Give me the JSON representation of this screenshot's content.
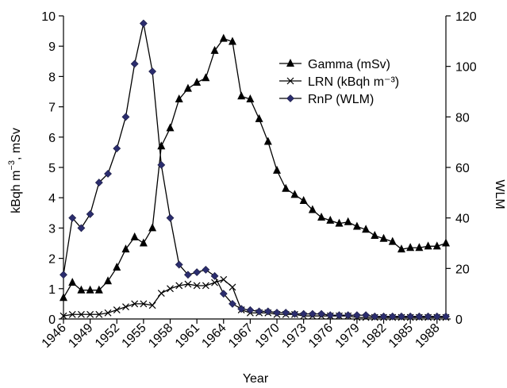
{
  "chart_data": {
    "type": "line",
    "xlabel": "Year",
    "ylabel_left_main": "kBqh m",
    "ylabel_left_sup": "−3",
    "ylabel_left_suffix": ", mSv",
    "ylabel_right": "WLM",
    "ylim_left": [
      0,
      10
    ],
    "ylim_right": [
      0,
      120
    ],
    "xlim": [
      1946,
      1989
    ],
    "x_ticks": [
      "1946",
      "1949",
      "1952",
      "1955",
      "1958",
      "1961",
      "1964",
      "1967",
      "1970",
      "1973",
      "1976",
      "1979",
      "1982",
      "1985",
      "1988"
    ],
    "y_ticks_left": [
      "0",
      "1",
      "2",
      "3",
      "4",
      "5",
      "6",
      "7",
      "8",
      "9",
      "10"
    ],
    "y_ticks_right": [
      "0",
      "20",
      "40",
      "60",
      "80",
      "100",
      "120"
    ],
    "grid": false,
    "legend_position": "top-right",
    "series": [
      {
        "name": "Gamma (mSv)",
        "axis": "left",
        "marker": "triangle",
        "color": "#000000",
        "x": [
          1946,
          1947,
          1948,
          1949,
          1950,
          1951,
          1952,
          1953,
          1954,
          1955,
          1956,
          1957,
          1958,
          1959,
          1960,
          1961,
          1962,
          1963,
          1964,
          1965,
          1966,
          1967,
          1968,
          1969,
          1970,
          1971,
          1972,
          1973,
          1974,
          1975,
          1976,
          1977,
          1978,
          1979,
          1980,
          1981,
          1982,
          1983,
          1984,
          1985,
          1986,
          1987,
          1988,
          1989
        ],
        "values": [
          0.7,
          1.2,
          0.95,
          0.95,
          0.95,
          1.25,
          1.7,
          2.3,
          2.7,
          2.5,
          3.0,
          5.7,
          6.3,
          7.25,
          7.6,
          7.8,
          7.95,
          8.85,
          9.25,
          9.15,
          7.35,
          7.25,
          6.6,
          5.85,
          4.9,
          4.3,
          4.1,
          3.9,
          3.6,
          3.35,
          3.25,
          3.15,
          3.2,
          3.05,
          2.95,
          2.75,
          2.65,
          2.55,
          2.3,
          2.35,
          2.35,
          2.4,
          2.4,
          2.5
        ]
      },
      {
        "name": "LRN (kBqh m⁻³)",
        "axis": "left",
        "marker": "x",
        "color": "#000000",
        "x": [
          1946,
          1947,
          1948,
          1949,
          1950,
          1951,
          1952,
          1953,
          1954,
          1955,
          1956,
          1957,
          1958,
          1959,
          1960,
          1961,
          1962,
          1963,
          1964,
          1965,
          1966,
          1967,
          1968,
          1969,
          1970,
          1971,
          1972,
          1973,
          1974,
          1975,
          1976,
          1977,
          1978,
          1979,
          1980,
          1981,
          1982,
          1983,
          1984,
          1985,
          1986,
          1987,
          1988,
          1989
        ],
        "values": [
          0.1,
          0.15,
          0.15,
          0.15,
          0.15,
          0.2,
          0.3,
          0.4,
          0.5,
          0.5,
          0.45,
          0.85,
          1.0,
          1.1,
          1.15,
          1.1,
          1.1,
          1.2,
          1.3,
          1.05,
          0.3,
          0.2,
          0.2,
          0.2,
          0.15,
          0.15,
          0.15,
          0.1,
          0.1,
          0.1,
          0.1,
          0.1,
          0.1,
          0.05,
          0.05,
          0.05,
          0.05,
          0.05,
          0.05,
          0.05,
          0.05,
          0.05,
          0.05,
          0.05
        ]
      },
      {
        "name": "RnP (WLM)",
        "axis": "right",
        "marker": "diamond",
        "color": "#2b2d6e",
        "x": [
          1946,
          1947,
          1948,
          1949,
          1950,
          1951,
          1952,
          1953,
          1954,
          1955,
          1956,
          1957,
          1958,
          1959,
          1960,
          1961,
          1962,
          1963,
          1964,
          1965,
          1966,
          1967,
          1968,
          1969,
          1970,
          1971,
          1972,
          1973,
          1974,
          1975,
          1976,
          1977,
          1978,
          1979,
          1980,
          1981,
          1982,
          1983,
          1984,
          1985,
          1986,
          1987,
          1988,
          1989
        ],
        "values": [
          17.5,
          40,
          36,
          41.5,
          54,
          57.5,
          67.5,
          80,
          101,
          117,
          98,
          61,
          40,
          21.5,
          17.5,
          18.5,
          19.5,
          17,
          10,
          6,
          4,
          3.5,
          3,
          3,
          2.5,
          2.5,
          2,
          2,
          2,
          2,
          1.5,
          1.5,
          1.5,
          1.5,
          1.5,
          1,
          1,
          1,
          1,
          1,
          1,
          1,
          1,
          1
        ]
      }
    ]
  }
}
